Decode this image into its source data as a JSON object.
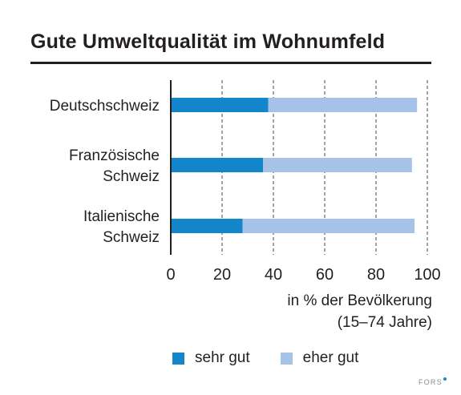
{
  "colors": {
    "sehr_gut": "#1385cb",
    "eher_gut": "#a6c2e8",
    "text": "#231f20",
    "logo_dot": "#1b88d0"
  },
  "logo": "FORS",
  "chart_data": {
    "type": "bar",
    "orientation": "horizontal",
    "stacked": true,
    "title": "Gute Umweltqualität im Wohnumfeld",
    "xlabel_lines": [
      "in % der Bevölkerung",
      "(15–74 Jahre)"
    ],
    "ylabel": "",
    "categories": [
      [
        "Deutschschweiz"
      ],
      [
        "Französische",
        "Schweiz"
      ],
      [
        "Italienische",
        "Schweiz"
      ]
    ],
    "series": [
      {
        "name": "sehr gut",
        "values": [
          38,
          36,
          28
        ]
      },
      {
        "name": "eher gut",
        "values": [
          58,
          58,
          67
        ]
      }
    ],
    "xlim": [
      0,
      100
    ],
    "xticks": [
      0,
      20,
      40,
      60,
      80,
      100
    ],
    "grid": "vertical dashed",
    "legend_position": "bottom"
  }
}
